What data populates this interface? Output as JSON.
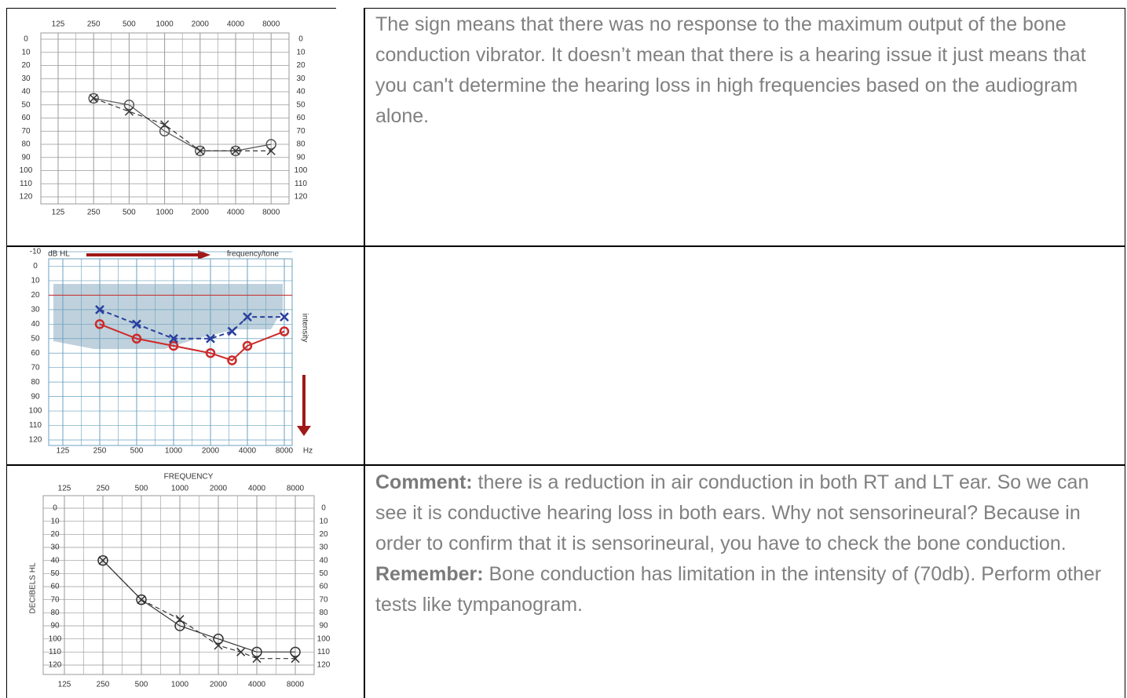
{
  "rows": [
    {
      "audiogram": {
        "type": "line",
        "xlim": [
          125,
          8000
        ],
        "ylim": [
          0,
          120
        ],
        "xticks": [
          125,
          250,
          500,
          1000,
          2000,
          4000,
          8000
        ],
        "yticks": [
          0,
          10,
          20,
          30,
          40,
          50,
          60,
          70,
          80,
          90,
          100,
          110,
          120
        ],
        "series": [
          {
            "marker": "circle",
            "color": "#555555",
            "dash": false,
            "x": [
              250,
              500,
              1000,
              2000,
              4000,
              8000
            ],
            "values": [
              45,
              50,
              70,
              85,
              85,
              80
            ]
          },
          {
            "marker": "cross",
            "color": "#333333",
            "dash": true,
            "x": [
              250,
              500,
              1000,
              2000,
              4000,
              8000
            ],
            "values": [
              45,
              55,
              65,
              85,
              85,
              85
            ]
          }
        ]
      },
      "paragraphs": [
        {
          "text": "The sign means that there was no response to the maximum output of the bone conduction vibrator. It doesn’t mean that there is a hearing issue it just means that you can't determine the hearing loss in high frequencies based on the audiogram alone."
        }
      ]
    },
    {
      "audiogram": {
        "type": "line",
        "ylabel": "dB HL",
        "xlabel": "frequency/tone",
        "side_label": "intensity",
        "unit": "Hz",
        "xlim": [
          125,
          8000
        ],
        "ylim": [
          -10,
          120
        ],
        "xticks": [
          125,
          250,
          500,
          1000,
          2000,
          4000,
          8000
        ],
        "yticks": [
          -10,
          0,
          10,
          20,
          30,
          40,
          50,
          60,
          70,
          80,
          90,
          100,
          110,
          120
        ],
        "reference_line": 20,
        "series": [
          {
            "marker": "circle",
            "color": "#cc2a2a",
            "dash": false,
            "x": [
              250,
              500,
              1000,
              2000,
              3000,
              4000,
              8000
            ],
            "values": [
              40,
              50,
              55,
              60,
              65,
              55,
              45
            ]
          },
          {
            "marker": "cross",
            "color": "#2a3f9e",
            "dash": true,
            "x": [
              250,
              500,
              1000,
              2000,
              3000,
              4000,
              8000
            ],
            "values": [
              30,
              40,
              50,
              50,
              45,
              35,
              35
            ]
          }
        ]
      },
      "paragraphs": []
    },
    {
      "audiogram": {
        "type": "line",
        "title": "FREQUENCY",
        "ylabel": "DECIBELS HL",
        "xlim": [
          125,
          8000
        ],
        "ylim": [
          0,
          120
        ],
        "xticks": [
          125,
          250,
          500,
          1000,
          2000,
          4000,
          8000
        ],
        "yticks": [
          0,
          10,
          20,
          30,
          40,
          50,
          60,
          70,
          80,
          90,
          100,
          110,
          120
        ],
        "series": [
          {
            "marker": "circle",
            "color": "#333333",
            "dash": false,
            "x": [
              250,
              500,
              1000,
              2000,
              4000,
              8000
            ],
            "values": [
              40,
              70,
              90,
              100,
              110,
              110
            ]
          },
          {
            "marker": "cross",
            "color": "#333333",
            "dash": true,
            "x": [
              250,
              500,
              1000,
              2000,
              3000,
              4000,
              8000
            ],
            "values": [
              40,
              70,
              85,
              105,
              110,
              115,
              115
            ]
          }
        ]
      },
      "paragraphs": [
        {
          "label": "Comment:",
          "text": " there is a reduction in air conduction in both RT and LT ear. So we can see it is conductive hearing loss in both ears. Why not sensorineural? Because in order to confirm that it is sensorineural, you have to check the bone conduction."
        },
        {
          "label": "Remember:",
          "text": " Bone conduction has limitation in the intensity of (70db). Perform other tests like tympanogram."
        }
      ]
    }
  ]
}
